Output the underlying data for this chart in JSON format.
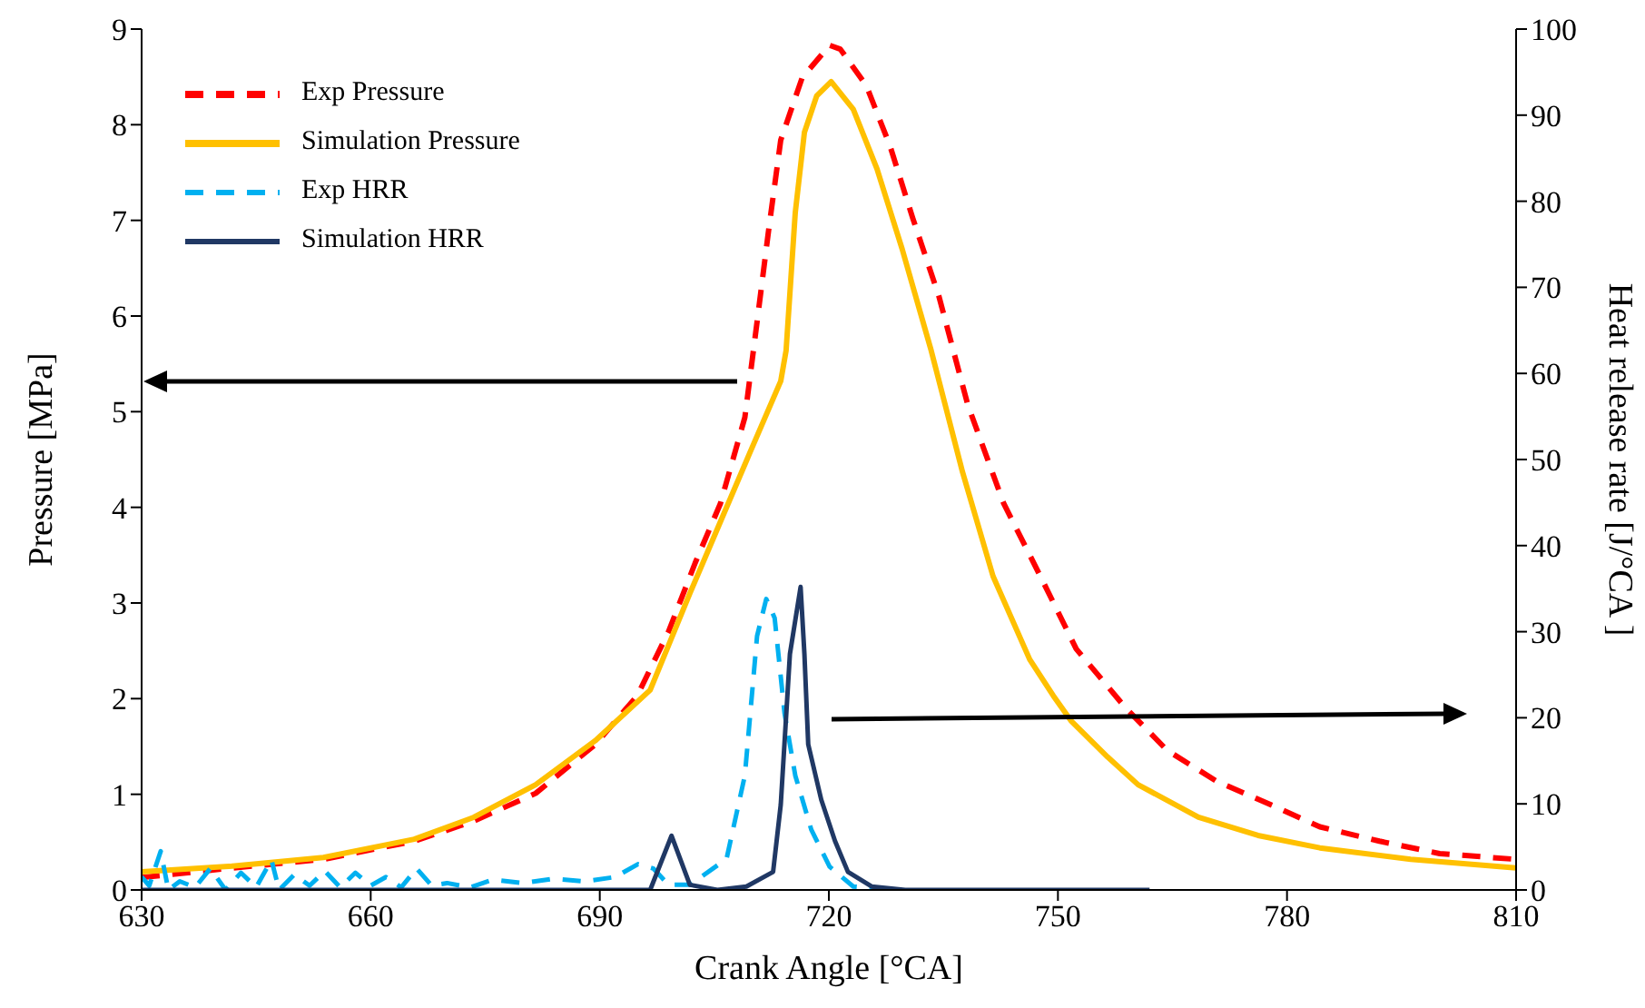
{
  "chart_data": {
    "type": "line",
    "xlabel": "Crank Angle [°CA]",
    "ylabel": "Pressure [MPa]",
    "y2label": "Heat release rate  [J/°CA ]",
    "xlim": [
      630,
      810
    ],
    "xticks": [
      630,
      660,
      690,
      720,
      750,
      780,
      810
    ],
    "ylim": [
      0,
      9
    ],
    "yticks": [
      0,
      1,
      2,
      3,
      4,
      5,
      6,
      7,
      8,
      9
    ],
    "y2lim": [
      0,
      100
    ],
    "y2ticks": [
      0,
      10,
      20,
      30,
      40,
      50,
      60,
      70,
      80,
      90,
      100
    ],
    "grid": false,
    "legend": "top left",
    "marker": "none",
    "series": [
      {
        "name": "Exp Pressure",
        "color": "#ff0000",
        "line_style": "dashed",
        "x": [
          630,
          641.9,
          653.8,
          665.7,
          673.5,
          681.6,
          689.4,
          694.9,
          699,
          702.5,
          705.8,
          709,
          710.6,
          712.1,
          713.7,
          716.5,
          720.1,
          721.5,
          724.9,
          728,
          731,
          734.4,
          738.2,
          742.9,
          747.7,
          752.4,
          758.9,
          764.3,
          770.7,
          777.9,
          784.3,
          792.1,
          800,
          810
        ],
        "values": [
          0.13,
          0.23,
          0.32,
          0.51,
          0.72,
          1.01,
          1.52,
          2.03,
          2.7,
          3.42,
          4.04,
          4.94,
          5.94,
          6.89,
          7.84,
          8.49,
          8.83,
          8.79,
          8.41,
          7.78,
          7.02,
          6.21,
          5.07,
          4.04,
          3.28,
          2.52,
          1.9,
          1.46,
          1.14,
          0.89,
          0.66,
          0.51,
          0.38,
          0.32
        ]
      },
      {
        "name": "Simulation Pressure",
        "color": "#ffc000",
        "line_style": "solid",
        "x": [
          630,
          641.9,
          653.8,
          665.7,
          673.5,
          681.6,
          689.4,
          696.6,
          701.8,
          705.8,
          709.6,
          713.7,
          714.4,
          715.6,
          716.8,
          718.4,
          720.3,
          723.2,
          726.3,
          729.6,
          733.4,
          737.5,
          741.5,
          746.3,
          749.4,
          751.7,
          756.5,
          760.5,
          768.4,
          776.2,
          784.3,
          796.2,
          810
        ],
        "values": [
          0.19,
          0.25,
          0.34,
          0.53,
          0.76,
          1.1,
          1.56,
          2.09,
          3.1,
          3.85,
          4.56,
          5.32,
          5.64,
          7.08,
          7.92,
          8.3,
          8.45,
          8.16,
          7.54,
          6.7,
          5.64,
          4.37,
          3.28,
          2.41,
          2.03,
          1.77,
          1.39,
          1.1,
          0.76,
          0.57,
          0.44,
          0.32,
          0.23
        ]
      },
      {
        "name": "Exp HRR",
        "color": "#00b0f0",
        "line_style": "dashed",
        "axis": "y2",
        "x": [
          630,
          631,
          632.5,
          633.5,
          635,
          637,
          639,
          641,
          643,
          645,
          647,
          648,
          650,
          652,
          654,
          656,
          658,
          660,
          662,
          664,
          666,
          668,
          670,
          673,
          676,
          680,
          684,
          688,
          692,
          695,
          697,
          699,
          701.8,
          706.6,
          709,
          710.6,
          711.8,
          712.9,
          714.2,
          715.6,
          717.7,
          720.1,
          723.2,
          728.7
        ],
        "values": [
          1.5,
          0.5,
          4.5,
          0,
          1,
          0.3,
          2.5,
          0,
          2,
          0.3,
          3.5,
          0,
          1.8,
          0.5,
          2.2,
          0.3,
          2,
          0.5,
          1.5,
          0.3,
          2.5,
          0.5,
          0.8,
          0.3,
          1.2,
          0.8,
          1.3,
          1,
          1.5,
          3,
          2.5,
          0.6,
          0.6,
          3.6,
          13.3,
          29.5,
          33.8,
          31.6,
          20.5,
          13.3,
          7,
          2.7,
          0.4,
          0
        ]
      },
      {
        "name": "Simulation HRR",
        "color": "#203864",
        "line_style": "solid",
        "axis": "y2",
        "x": [
          630,
          696.6,
          699.4,
          701.8,
          705.4,
          709.2,
          712.7,
          713.7,
          714.9,
          716.3,
          716.8,
          717.3,
          719,
          720.8,
          722.5,
          725.6,
          730,
          762
        ],
        "values": [
          0,
          0,
          6.3,
          0.6,
          0,
          0.4,
          2.1,
          9.9,
          27.4,
          35.2,
          27.4,
          16.9,
          10.5,
          5.7,
          2.1,
          0.4,
          0,
          0
        ]
      }
    ]
  }
}
